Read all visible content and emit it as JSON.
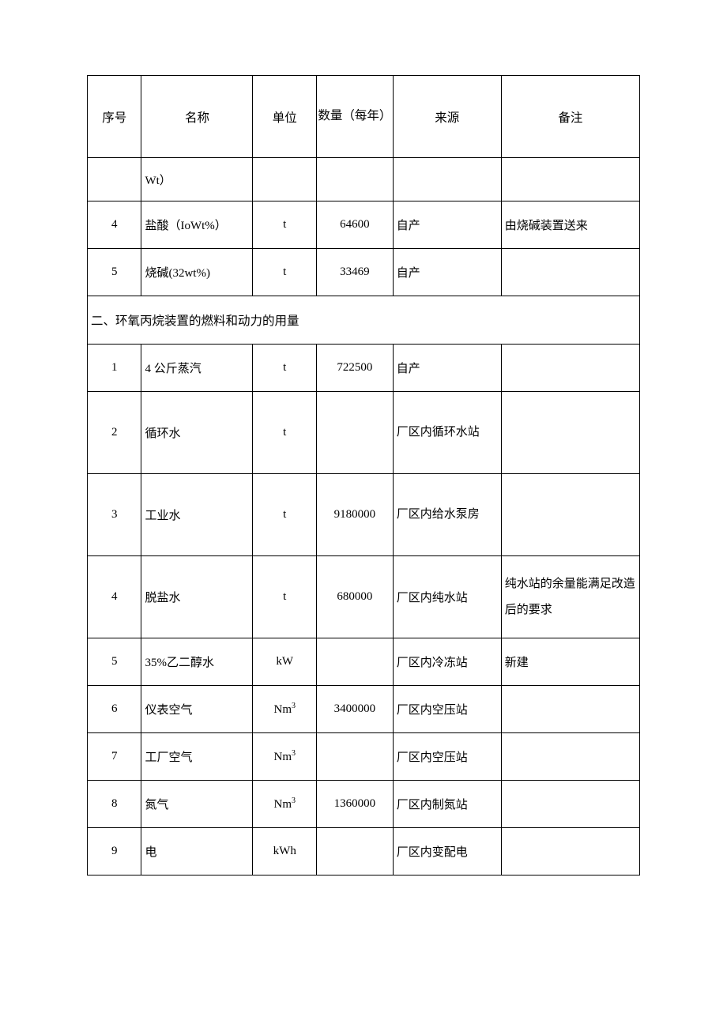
{
  "table": {
    "columns": {
      "num": "序号",
      "name": "名称",
      "unit": "单位",
      "qty": "数量（每年）",
      "src": "来源",
      "note": "备注"
    },
    "partial_row": {
      "name": "Wt）"
    },
    "top_rows": [
      {
        "num": "4",
        "name": "盐酸（IoWt%）",
        "unit": "t",
        "qty": "64600",
        "src": "自产",
        "note": "由烧碱装置送来"
      },
      {
        "num": "5",
        "name": "烧碱(32wt%)",
        "unit": "t",
        "qty": "33469",
        "src": "自产",
        "note": ""
      }
    ],
    "section2_title": "二、环氧丙烷装置的燃料和动力的用量",
    "section2_rows": [
      {
        "num": "1",
        "name": "4 公斤蒸汽",
        "unit": "t",
        "qty": "722500",
        "src": "自产",
        "note": ""
      },
      {
        "num": "2",
        "name": "循环水",
        "unit": "t",
        "qty": "",
        "src": "厂区内循环水站",
        "note": ""
      },
      {
        "num": "3",
        "name": "工业水",
        "unit": "t",
        "qty": "9180000",
        "src": "厂区内给水泵房",
        "note": ""
      },
      {
        "num": "4",
        "name": "脱盐水",
        "unit": "t",
        "qty": "680000",
        "src": "厂区内纯水站",
        "note": "纯水站的余量能满足改造后的要求"
      },
      {
        "num": "5",
        "name": "35%乙二醇水",
        "unit": "kW",
        "qty": "",
        "src": "厂区内冷冻站",
        "note": "新建"
      },
      {
        "num": "6",
        "name": "仪表空气",
        "unit": "Nm³",
        "qty": "3400000",
        "src": "厂区内空压站",
        "note": ""
      },
      {
        "num": "7",
        "name": "工厂空气",
        "unit": "Nm³",
        "qty": "",
        "src": "厂区内空压站",
        "note": ""
      },
      {
        "num": "8",
        "name": "氮气",
        "unit": "Nm³",
        "qty": "1360000",
        "src": "厂区内制氮站",
        "note": ""
      },
      {
        "num": "9",
        "name": "电",
        "unit": "kWh",
        "qty": "",
        "src": "厂区内变配电",
        "note": ""
      }
    ]
  }
}
